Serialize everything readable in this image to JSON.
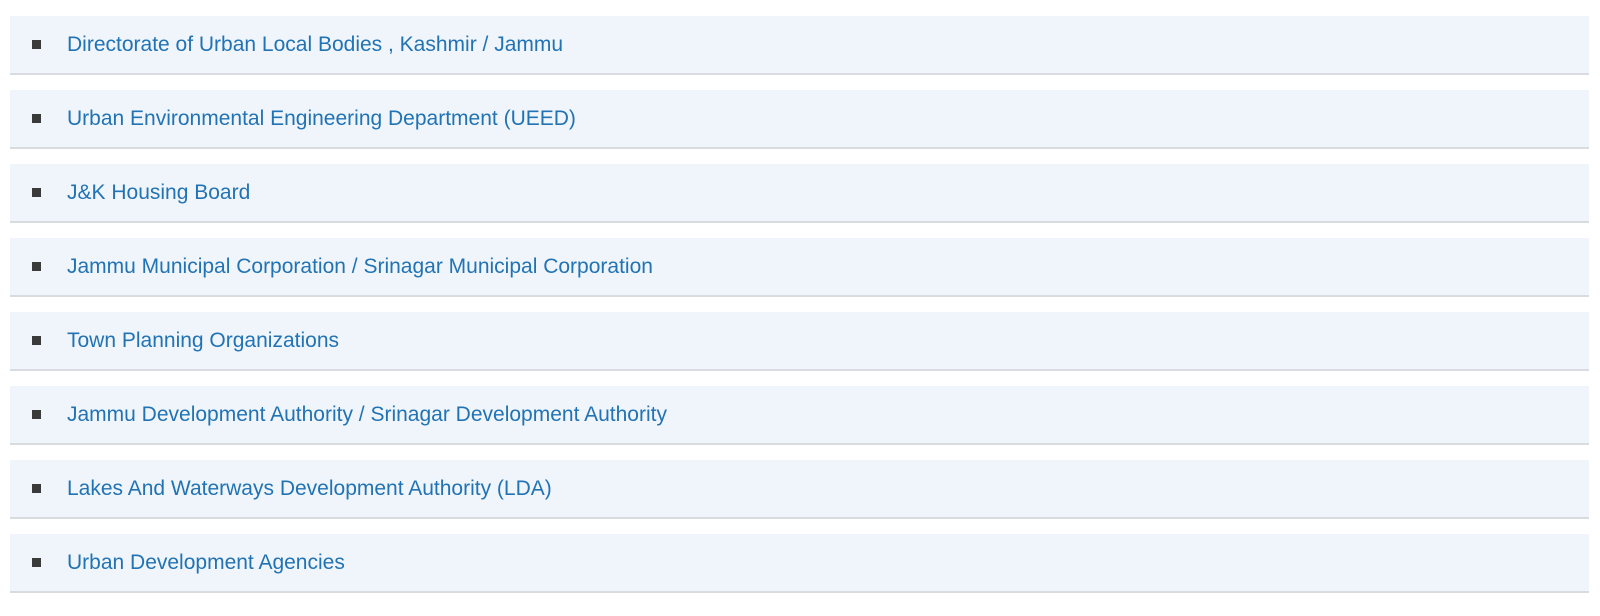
{
  "list": {
    "name": "department-links",
    "items": [
      {
        "label": "Directorate of Urban Local Bodies , Kashmir / Jammu"
      },
      {
        "label": "Urban Environmental Engineering Department (UEED)"
      },
      {
        "label": "J&K Housing Board"
      },
      {
        "label": "Jammu Municipal Corporation / Srinagar Municipal Corporation"
      },
      {
        "label": "Town Planning Organizations"
      },
      {
        "label": "Jammu Development Authority / Srinagar Development Authority"
      },
      {
        "label": "Lakes And Waterways Development Authority (LDA)"
      },
      {
        "label": "Urban Development Agencies"
      }
    ],
    "bullet_icon": "square-bullet-icon",
    "colors": {
      "page_background": "#ffffff",
      "row_background": "#f0f5fb",
      "row_border": "#d8dcde",
      "link_text": "#2173b4",
      "bullet": "#3a3a3a"
    }
  }
}
